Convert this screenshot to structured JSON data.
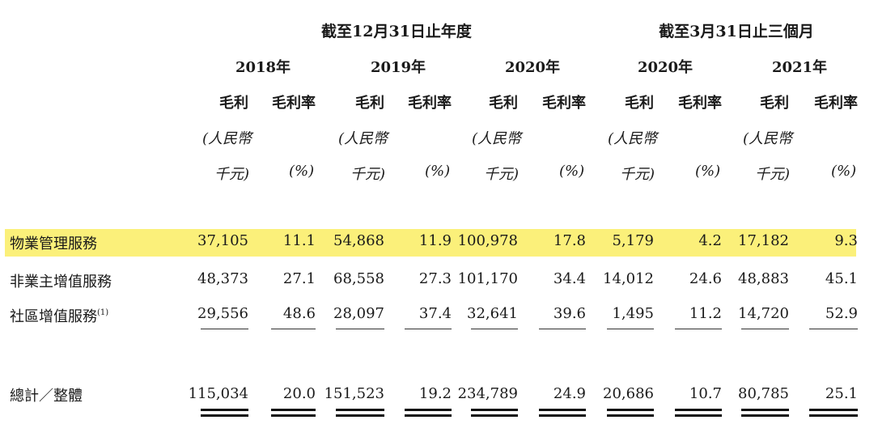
{
  "header": {
    "group1": "截至12月31日止年度",
    "group2": "截至3月31日止三個月",
    "years": [
      "2018年",
      "2019年",
      "2020年",
      "2020年",
      "2021年"
    ],
    "col_gross_profit": "毛利",
    "col_gross_margin": "毛利率",
    "unit_gp_line1": "(人民幣",
    "unit_gp_line2": "千元)",
    "unit_margin": "(%)"
  },
  "rows": [
    {
      "label": "物業管理服務",
      "values": [
        "37,105",
        "11.1",
        "54,868",
        "11.9",
        "100,978",
        "17.8",
        "5,179",
        "4.2",
        "17,182",
        "9.3"
      ],
      "highlight": true
    },
    {
      "label": "非業主增值服務",
      "values": [
        "48,373",
        "27.1",
        "68,558",
        "27.3",
        "101,170",
        "34.4",
        "14,012",
        "24.6",
        "48,883",
        "45.1"
      ]
    },
    {
      "label": "社區增值服務",
      "note": "(1)",
      "values": [
        "29,556",
        "48.6",
        "28,097",
        "37.4",
        "32,641",
        "39.6",
        "1,495",
        "11.2",
        "14,720",
        "52.9"
      ]
    }
  ],
  "total": {
    "label": "總計／整體",
    "values": [
      "115,034",
      "20.0",
      "151,523",
      "19.2",
      "234,789",
      "24.9",
      "20,686",
      "10.7",
      "80,785",
      "25.1"
    ]
  },
  "colors": {
    "highlight": "#fbf07a"
  }
}
